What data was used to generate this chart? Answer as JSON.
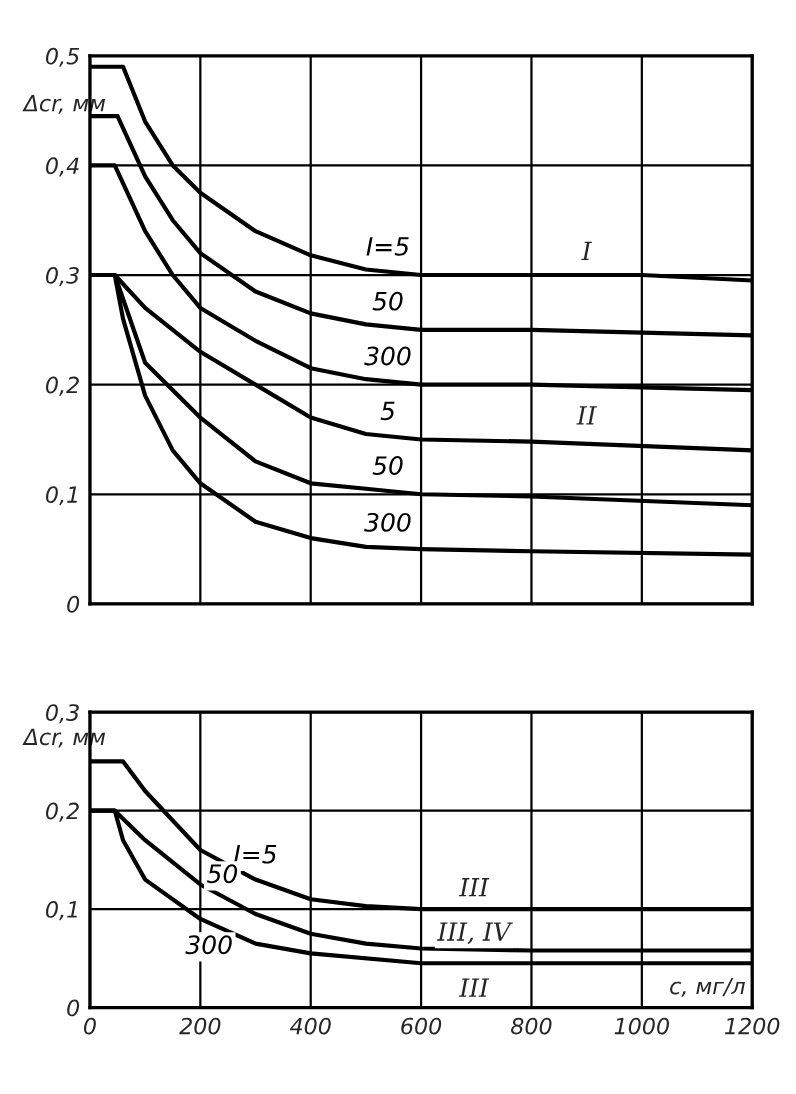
{
  "chart_data": [
    {
      "type": "line",
      "ylabel": "Δcr, мм",
      "xlim": [
        0,
        1200
      ],
      "xticks": [
        {
          "value": 0,
          "label": null
        },
        {
          "value": 200,
          "label": null
        },
        {
          "value": 400,
          "label": null
        },
        {
          "value": 600,
          "label": null
        },
        {
          "value": 800,
          "label": null
        },
        {
          "value": 1000,
          "label": null
        },
        {
          "value": 1200,
          "label": null
        }
      ],
      "ylim": [
        0,
        0.5
      ],
      "yticks": [
        0,
        {
          "value": 0.1,
          "label": "0,1"
        },
        {
          "value": 0.2,
          "label": "0,2"
        },
        {
          "value": 0.3,
          "label": "0,3"
        },
        {
          "value": 0.4,
          "label": "0,4"
        },
        {
          "value": 0.5,
          "label": "0,5"
        }
      ],
      "tick_labels": "y",
      "grid": true,
      "legend": false,
      "marker": "none",
      "line_style": "solid",
      "series": [
        {
          "name": "I=5",
          "color": "#000000",
          "x": [
            0,
            60,
            100,
            150,
            200,
            300,
            400,
            500,
            600,
            800,
            1000,
            1200
          ],
          "values": [
            0.49,
            0.49,
            0.44,
            0.4,
            0.375,
            0.34,
            0.318,
            0.305,
            0.3,
            0.3,
            0.3,
            0.295
          ]
        },
        {
          "name": "50",
          "color": "#000000",
          "x": [
            0,
            50,
            100,
            150,
            200,
            300,
            400,
            500,
            600,
            800,
            1200
          ],
          "values": [
            0.445,
            0.445,
            0.39,
            0.35,
            0.32,
            0.285,
            0.265,
            0.255,
            0.25,
            0.25,
            0.245
          ]
        },
        {
          "name": "300",
          "color": "#000000",
          "x": [
            0,
            45,
            100,
            150,
            200,
            300,
            400,
            500,
            600,
            800,
            1200
          ],
          "values": [
            0.4,
            0.4,
            0.34,
            0.3,
            0.27,
            0.24,
            0.215,
            0.205,
            0.2,
            0.2,
            0.195
          ]
        },
        {
          "name": "5",
          "color": "#000000",
          "x": [
            0,
            45,
            100,
            200,
            300,
            400,
            500,
            600,
            800,
            1200
          ],
          "values": [
            0.3,
            0.3,
            0.27,
            0.23,
            0.2,
            0.17,
            0.155,
            0.15,
            0.148,
            0.14
          ]
        },
        {
          "name": "50",
          "color": "#000000",
          "x": [
            0,
            45,
            100,
            200,
            300,
            400,
            500,
            600,
            800,
            1200
          ],
          "values": [
            0.3,
            0.3,
            0.22,
            0.17,
            0.13,
            0.11,
            0.105,
            0.1,
            0.098,
            0.09
          ]
        },
        {
          "name": "300",
          "color": "#000000",
          "x": [
            0,
            45,
            60,
            100,
            150,
            200,
            300,
            400,
            500,
            600,
            800,
            1200
          ],
          "values": [
            0.3,
            0.3,
            0.26,
            0.19,
            0.14,
            0.11,
            0.075,
            0.06,
            0.052,
            0.05,
            0.048,
            0.045
          ]
        }
      ],
      "annotations": [
        "I",
        "II"
      ]
    },
    {
      "type": "line",
      "ylabel": "Δcr, мм",
      "xlabel": "c, мг/л",
      "xlim": [
        0,
        1200
      ],
      "xticks": [
        0,
        200,
        400,
        600,
        800,
        1000,
        1200
      ],
      "ylim": [
        0,
        0.3
      ],
      "yticks": [
        0,
        {
          "value": 0.1,
          "label": "0,1"
        },
        {
          "value": 0.2,
          "label": "0,2"
        },
        {
          "value": 0.3,
          "label": "0,3"
        }
      ],
      "grid": true,
      "legend": false,
      "marker": "none",
      "line_style": "solid",
      "series": [
        {
          "name": "I=5",
          "color": "#000000",
          "x": [
            0,
            60,
            100,
            200,
            300,
            400,
            500,
            600,
            800,
            1200
          ],
          "values": [
            0.25,
            0.25,
            0.22,
            0.16,
            0.13,
            0.11,
            0.103,
            0.1,
            0.1,
            0.1
          ]
        },
        {
          "name": "50",
          "color": "#000000",
          "x": [
            0,
            45,
            100,
            200,
            300,
            400,
            500,
            600,
            800,
            1200
          ],
          "values": [
            0.2,
            0.2,
            0.17,
            0.125,
            0.095,
            0.075,
            0.065,
            0.06,
            0.058,
            0.058
          ]
        },
        {
          "name": "300",
          "color": "#000000",
          "x": [
            0,
            45,
            60,
            100,
            200,
            300,
            400,
            600,
            1200
          ],
          "values": [
            0.2,
            0.2,
            0.17,
            0.13,
            0.09,
            0.065,
            0.055,
            0.045,
            0.045
          ]
        }
      ],
      "annotations": [
        "III",
        "III, IV",
        "III"
      ]
    }
  ]
}
